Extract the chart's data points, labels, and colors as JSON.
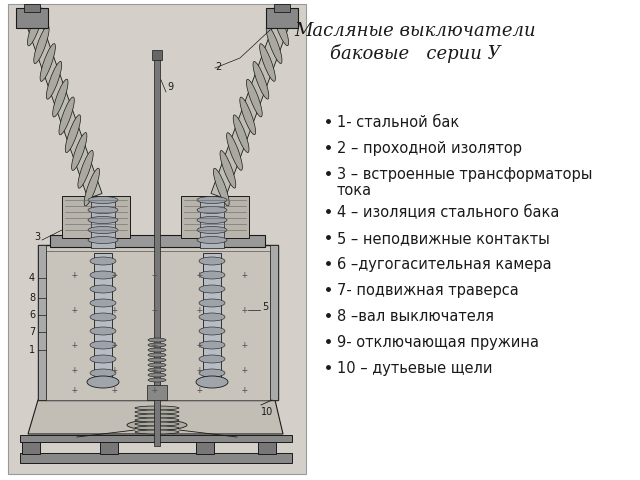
{
  "title_line1": "Масляные выключатели",
  "title_line2": "баковые   серии У",
  "bg_color": "#ffffff",
  "text_color": "#1a1a1a",
  "image_bg_color": "#d6d2cb",
  "title_fontsize": 13,
  "bullet_fontsize": 10.5,
  "dark": "#1a1a1a",
  "gray1": "#888888",
  "gray2": "#aaaaaa",
  "gray3": "#cccccc",
  "gray_light": "#c8c4bc",
  "bullet_items": [
    "1- стальной бак",
    "2 – проходной изолятор",
    "3 – встроенные трансформаторы тока",
    "4 – изоляция стального бака",
    "5 – неподвижные контакты",
    "6 –дугогасительная камера",
    "7- подвижная траверса",
    "8 –вал выключателя",
    "9- отключающая пружина",
    "10 – дутьевые щели"
  ]
}
